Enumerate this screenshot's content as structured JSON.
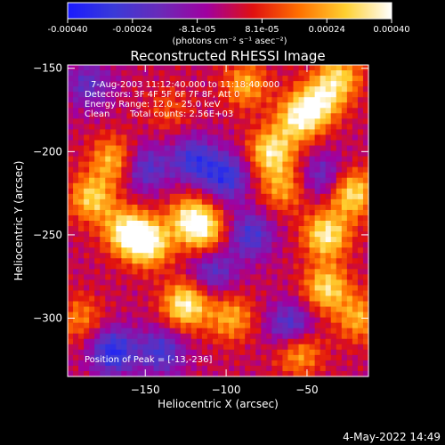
{
  "colorbar": {
    "tick_labels": [
      "-0.00040",
      "-0.00024",
      "-8.1e-05",
      "8.1e-05",
      "0.00024",
      "0.00040"
    ],
    "range": [
      -0.0004,
      0.0004
    ],
    "units_label": "(photons cm⁻² s⁻¹ asec⁻²)",
    "colormap_stops": [
      "#1a1aff",
      "#3a3ad8",
      "#6a2ab8",
      "#a000a0",
      "#e01010",
      "#ff7000",
      "#ffd030",
      "#ffffff"
    ]
  },
  "chart_data": {
    "type": "heatmap",
    "title": "Reconstructed RHESSI Image",
    "xlabel": "Heliocentric X (arcsec)",
    "ylabel": "Heliocentric Y (arcsec)",
    "xlim": [
      -198,
      -12
    ],
    "ylim": [
      -335,
      -148
    ],
    "x_ticks": [
      -150,
      -100,
      -50
    ],
    "y_ticks": [
      -150,
      -200,
      -250,
      -300
    ],
    "x_tick_labels": [
      "−150",
      "−100",
      "−50"
    ],
    "y_tick_labels": [
      "−150",
      "−200",
      "−250",
      "−300"
    ],
    "grid": false,
    "annotations": [
      "7-Aug-2003 11:12:40.000 to 11:18:40.000",
      "Detectors: 3F 4F 5F 6F 7F 8F, Att 0",
      "Energy Range: 12.0 - 25.0 keV",
      "Clean",
      "Total counts: 2.56E+03"
    ],
    "peak_label": "Position of Peak = [-13,-236]",
    "peak": [
      -13,
      -236
    ],
    "sources": [
      {
        "x": -183,
        "y": -228,
        "amp": 0.0003
      },
      {
        "x": -170,
        "y": -205,
        "amp": 0.00026
      },
      {
        "x": -162,
        "y": -248,
        "amp": 0.00034
      },
      {
        "x": -148,
        "y": -255,
        "amp": 0.00038
      },
      {
        "x": -125,
        "y": -292,
        "amp": 0.00038
      },
      {
        "x": -122,
        "y": -240,
        "amp": 0.0003
      },
      {
        "x": -113,
        "y": -248,
        "amp": 0.00026
      },
      {
        "x": -97,
        "y": -300,
        "amp": 0.00024
      },
      {
        "x": -88,
        "y": -160,
        "amp": 0.00024
      },
      {
        "x": -72,
        "y": -200,
        "amp": 0.00034
      },
      {
        "x": -65,
        "y": -222,
        "amp": 0.00022
      },
      {
        "x": -55,
        "y": -180,
        "amp": 0.00034
      },
      {
        "x": -42,
        "y": -170,
        "amp": 0.0003
      },
      {
        "x": -38,
        "y": -250,
        "amp": 0.00036
      },
      {
        "x": -38,
        "y": -282,
        "amp": 0.00032
      },
      {
        "x": -22,
        "y": -225,
        "amp": 0.00034
      },
      {
        "x": -18,
        "y": -300,
        "amp": 0.00024
      },
      {
        "x": -55,
        "y": -320,
        "amp": 0.00026
      },
      {
        "x": -30,
        "y": -155,
        "amp": 0.00028
      },
      {
        "x": -190,
        "y": -300,
        "amp": 0.00018
      },
      {
        "x": -135,
        "y": -175,
        "amp": 0.00012
      }
    ],
    "negative_regions": [
      {
        "x": -170,
        "y": -320,
        "amp": -0.00034
      },
      {
        "x": -140,
        "y": -320,
        "amp": -0.00026
      },
      {
        "x": -120,
        "y": -205,
        "amp": -0.00028
      },
      {
        "x": -150,
        "y": -210,
        "amp": -0.00024
      },
      {
        "x": -100,
        "y": -215,
        "amp": -0.0003
      },
      {
        "x": -85,
        "y": -250,
        "amp": -0.00026
      },
      {
        "x": -60,
        "y": -305,
        "amp": -0.00028
      },
      {
        "x": -108,
        "y": -272,
        "amp": -0.00022
      },
      {
        "x": -185,
        "y": -160,
        "amp": -0.0002
      },
      {
        "x": -40,
        "y": -215,
        "amp": -0.0002
      }
    ]
  },
  "footer": {
    "timestamp": "4-May-2022 14:49"
  }
}
